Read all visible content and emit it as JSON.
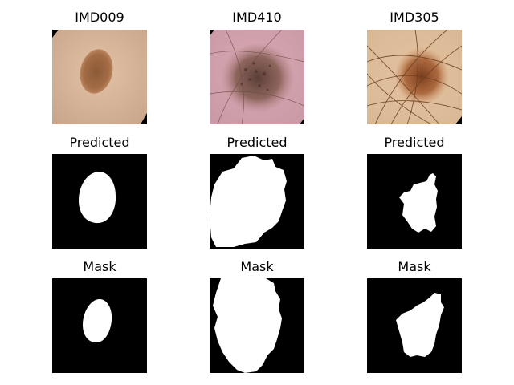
{
  "panels": [
    {
      "title": "IMD009"
    },
    {
      "title": "IMD410"
    },
    {
      "title": "IMD305"
    },
    {
      "title": "Predicted"
    },
    {
      "title": "Predicted"
    },
    {
      "title": "Predicted"
    },
    {
      "title": "Mask"
    },
    {
      "title": "Mask"
    },
    {
      "title": "Mask"
    }
  ]
}
